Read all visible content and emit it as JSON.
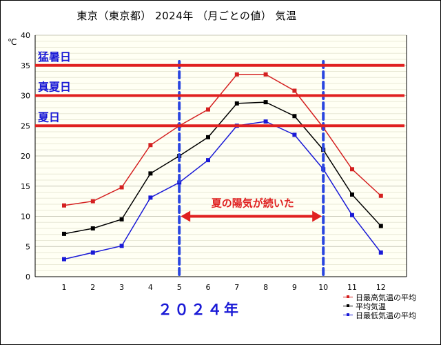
{
  "title": "東京（東京都） 2024年 （月ごとの値） 気温",
  "year_label": "２０２４年",
  "chart_data": {
    "type": "line",
    "title": "東京（東京都） 2024年 （月ごとの値） 気温",
    "ylabel": "℃",
    "xlabel": "２０２４年",
    "x": [
      "1",
      "2",
      "3",
      "4",
      "5",
      "6",
      "7",
      "8",
      "9",
      "10",
      "11",
      "12"
    ],
    "ylim": [
      0,
      40
    ],
    "yticks": [
      "0",
      "5",
      "10",
      "15",
      "20",
      "25",
      "30",
      "35",
      "40"
    ],
    "grid": true,
    "legend_position": "bottom-right",
    "series": [
      {
        "name": "日最高気温の平均",
        "color": "#d42020",
        "values": [
          11.8,
          12.5,
          14.8,
          21.8,
          25.0,
          27.7,
          33.5,
          33.5,
          30.8,
          24.7,
          17.8,
          13.4
        ]
      },
      {
        "name": "平均気温",
        "color": "#000000",
        "values": [
          7.1,
          8.0,
          9.5,
          17.1,
          20.0,
          23.1,
          28.7,
          28.9,
          26.6,
          21.0,
          13.6,
          8.4
        ]
      },
      {
        "name": "日最低気温の平均",
        "color": "#1a1ad6",
        "values": [
          2.9,
          4.0,
          5.1,
          13.1,
          15.6,
          19.3,
          25.0,
          25.7,
          23.5,
          17.8,
          10.2,
          4.0
        ]
      }
    ],
    "reference_lines": [
      {
        "label": "猛暑日",
        "value": 35
      },
      {
        "label": "真夏日",
        "value": 30
      },
      {
        "label": "夏日",
        "value": 25
      }
    ],
    "reference_color": "#e02020",
    "reference_label_color": "#1a1ad6",
    "period_lines": [
      5,
      10
    ],
    "period_color": "#2a46e0",
    "period_annotation": "夏の陽気が続いた",
    "annotation_color": "#e02020"
  }
}
